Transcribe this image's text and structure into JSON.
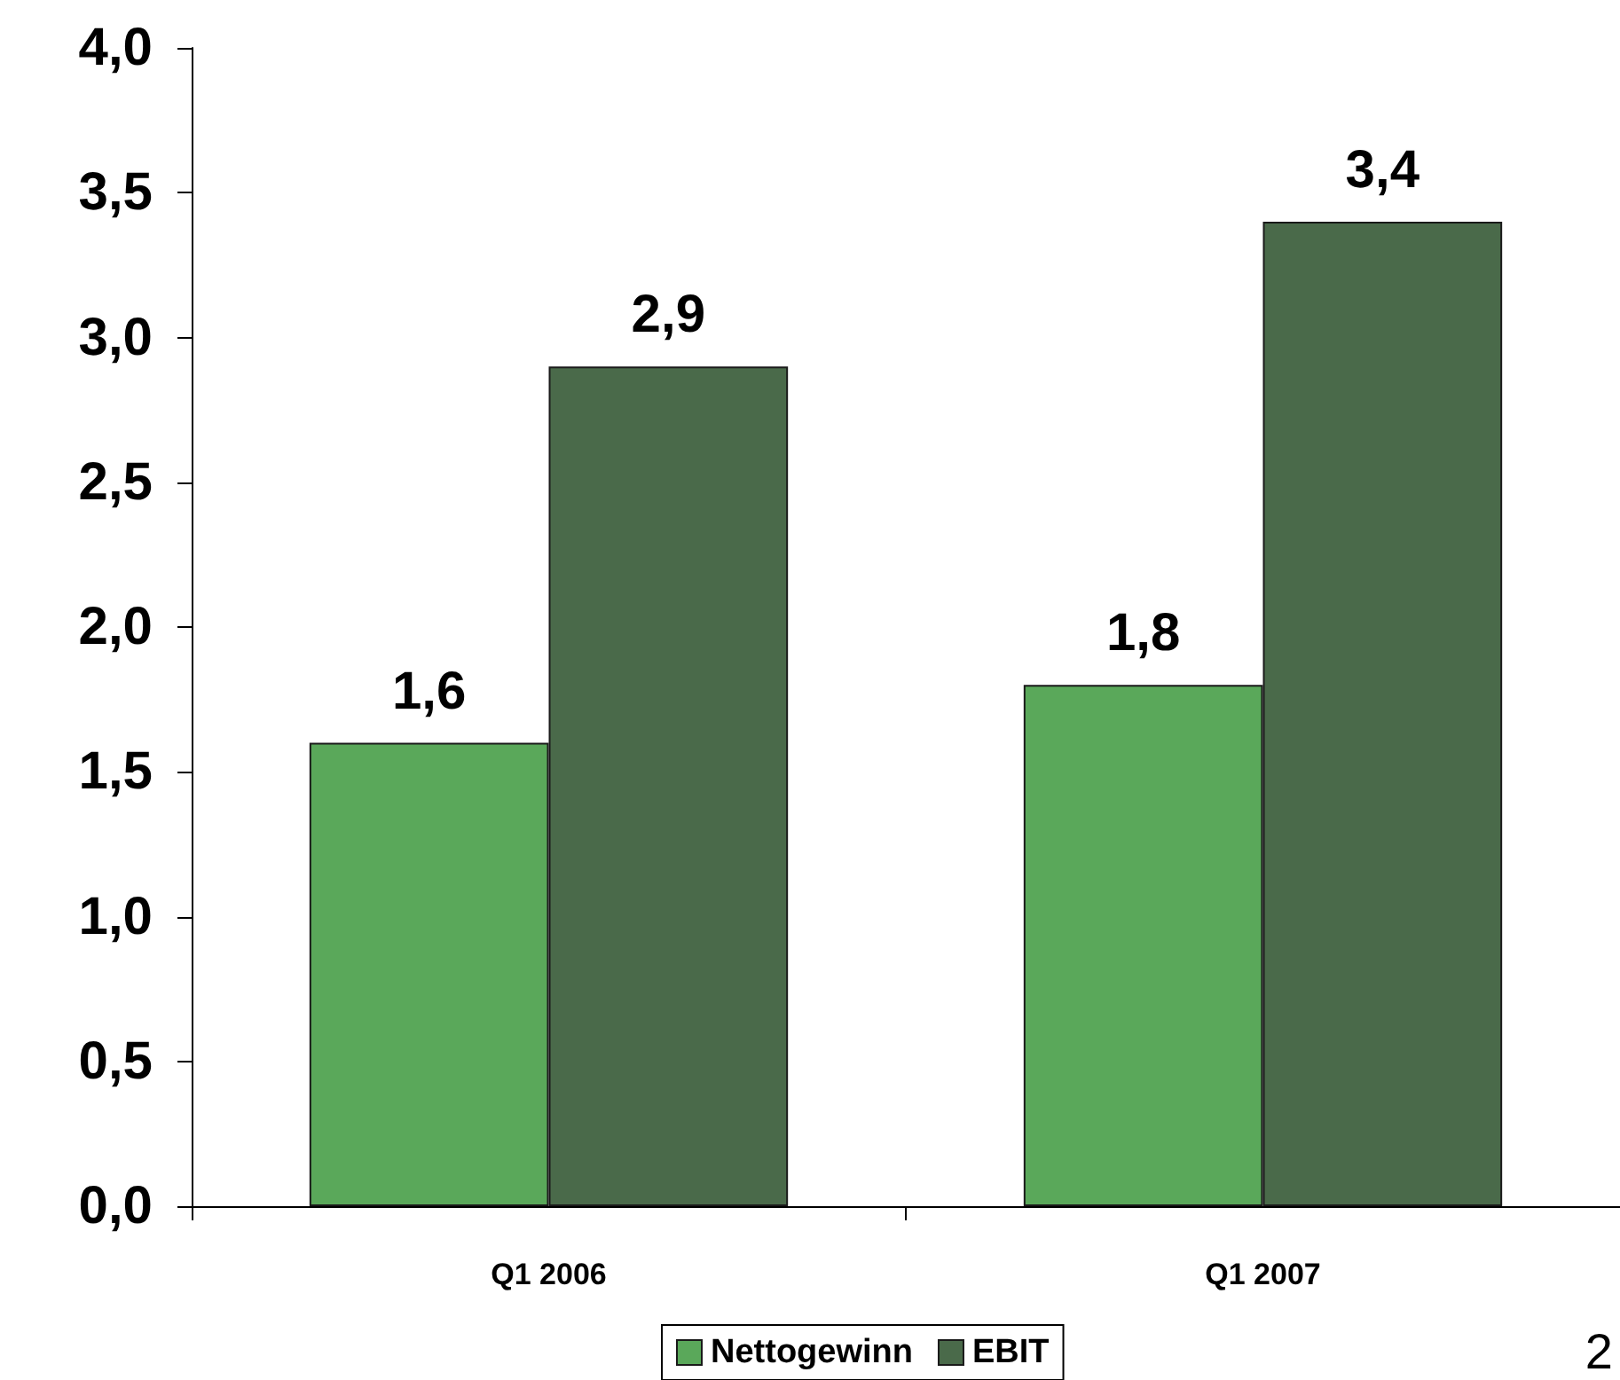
{
  "chart_data": {
    "type": "bar",
    "categories": [
      "Q1 2006",
      "Q1 2007"
    ],
    "series": [
      {
        "name": "Nettogewinn",
        "color": "#5aa85a",
        "values": [
          1.6,
          1.8
        ],
        "value_labels": [
          "1,6",
          "1,8"
        ]
      },
      {
        "name": "EBIT",
        "color": "#4a6a4a",
        "values": [
          2.9,
          3.4
        ],
        "value_labels": [
          "2,9",
          "3,4"
        ]
      }
    ],
    "ylim": [
      0,
      4
    ],
    "yticks": [
      {
        "value": 0,
        "label": "0,0"
      },
      {
        "value": 0.5,
        "label": "0,5"
      },
      {
        "value": 1,
        "label": "1,0"
      },
      {
        "value": 1.5,
        "label": "1,5"
      },
      {
        "value": 2,
        "label": "2,0"
      },
      {
        "value": 2.5,
        "label": "2,5"
      },
      {
        "value": 3,
        "label": "3,0"
      },
      {
        "value": 3.5,
        "label": "3,5"
      },
      {
        "value": 4,
        "label": "4,0"
      }
    ],
    "grid": false,
    "legend": "bottom",
    "annotations": [
      "2"
    ]
  }
}
